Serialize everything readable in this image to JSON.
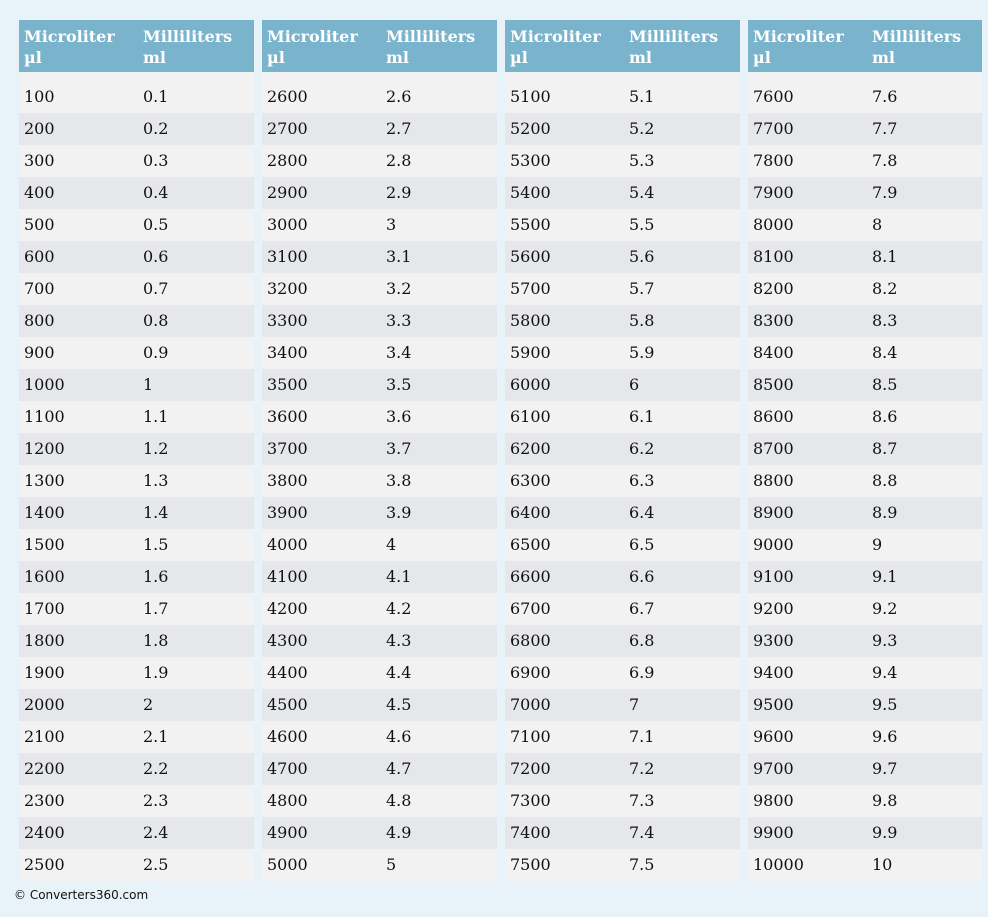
{
  "headers": {
    "col1_line1": "Microliter",
    "col1_line2": "µl",
    "col2_line1": "Milliliters",
    "col2_line2": "ml"
  },
  "tables": [
    [
      [
        "100",
        "0.1"
      ],
      [
        "200",
        "0.2"
      ],
      [
        "300",
        "0.3"
      ],
      [
        "400",
        "0.4"
      ],
      [
        "500",
        "0.5"
      ],
      [
        "600",
        "0.6"
      ],
      [
        "700",
        "0.7"
      ],
      [
        "800",
        "0.8"
      ],
      [
        "900",
        "0.9"
      ],
      [
        "1000",
        "1"
      ],
      [
        "1100",
        "1.1"
      ],
      [
        "1200",
        "1.2"
      ],
      [
        "1300",
        "1.3"
      ],
      [
        "1400",
        "1.4"
      ],
      [
        "1500",
        "1.5"
      ],
      [
        "1600",
        "1.6"
      ],
      [
        "1700",
        "1.7"
      ],
      [
        "1800",
        "1.8"
      ],
      [
        "1900",
        "1.9"
      ],
      [
        "2000",
        "2"
      ],
      [
        "2100",
        "2.1"
      ],
      [
        "2200",
        "2.2"
      ],
      [
        "2300",
        "2.3"
      ],
      [
        "2400",
        "2.4"
      ],
      [
        "2500",
        "2.5"
      ]
    ],
    [
      [
        "2600",
        "2.6"
      ],
      [
        "2700",
        "2.7"
      ],
      [
        "2800",
        "2.8"
      ],
      [
        "2900",
        "2.9"
      ],
      [
        "3000",
        "3"
      ],
      [
        "3100",
        "3.1"
      ],
      [
        "3200",
        "3.2"
      ],
      [
        "3300",
        "3.3"
      ],
      [
        "3400",
        "3.4"
      ],
      [
        "3500",
        "3.5"
      ],
      [
        "3600",
        "3.6"
      ],
      [
        "3700",
        "3.7"
      ],
      [
        "3800",
        "3.8"
      ],
      [
        "3900",
        "3.9"
      ],
      [
        "4000",
        "4"
      ],
      [
        "4100",
        "4.1"
      ],
      [
        "4200",
        "4.2"
      ],
      [
        "4300",
        "4.3"
      ],
      [
        "4400",
        "4.4"
      ],
      [
        "4500",
        "4.5"
      ],
      [
        "4600",
        "4.6"
      ],
      [
        "4700",
        "4.7"
      ],
      [
        "4800",
        "4.8"
      ],
      [
        "4900",
        "4.9"
      ],
      [
        "5000",
        "5"
      ]
    ],
    [
      [
        "5100",
        "5.1"
      ],
      [
        "5200",
        "5.2"
      ],
      [
        "5300",
        "5.3"
      ],
      [
        "5400",
        "5.4"
      ],
      [
        "5500",
        "5.5"
      ],
      [
        "5600",
        "5.6"
      ],
      [
        "5700",
        "5.7"
      ],
      [
        "5800",
        "5.8"
      ],
      [
        "5900",
        "5.9"
      ],
      [
        "6000",
        "6"
      ],
      [
        "6100",
        "6.1"
      ],
      [
        "6200",
        "6.2"
      ],
      [
        "6300",
        "6.3"
      ],
      [
        "6400",
        "6.4"
      ],
      [
        "6500",
        "6.5"
      ],
      [
        "6600",
        "6.6"
      ],
      [
        "6700",
        "6.7"
      ],
      [
        "6800",
        "6.8"
      ],
      [
        "6900",
        "6.9"
      ],
      [
        "7000",
        "7"
      ],
      [
        "7100",
        "7.1"
      ],
      [
        "7200",
        "7.2"
      ],
      [
        "7300",
        "7.3"
      ],
      [
        "7400",
        "7.4"
      ],
      [
        "7500",
        "7.5"
      ]
    ],
    [
      [
        "7600",
        "7.6"
      ],
      [
        "7700",
        "7.7"
      ],
      [
        "7800",
        "7.8"
      ],
      [
        "7900",
        "7.9"
      ],
      [
        "8000",
        "8"
      ],
      [
        "8100",
        "8.1"
      ],
      [
        "8200",
        "8.2"
      ],
      [
        "8300",
        "8.3"
      ],
      [
        "8400",
        "8.4"
      ],
      [
        "8500",
        "8.5"
      ],
      [
        "8600",
        "8.6"
      ],
      [
        "8700",
        "8.7"
      ],
      [
        "8800",
        "8.8"
      ],
      [
        "8900",
        "8.9"
      ],
      [
        "9000",
        "9"
      ],
      [
        "9100",
        "9.1"
      ],
      [
        "9200",
        "9.2"
      ],
      [
        "9300",
        "9.3"
      ],
      [
        "9400",
        "9.4"
      ],
      [
        "9500",
        "9.5"
      ],
      [
        "9600",
        "9.6"
      ],
      [
        "9700",
        "9.7"
      ],
      [
        "9800",
        "9.8"
      ],
      [
        "9900",
        "9.9"
      ],
      [
        "10000",
        "10"
      ]
    ]
  ],
  "footer": "© Converters360.com"
}
